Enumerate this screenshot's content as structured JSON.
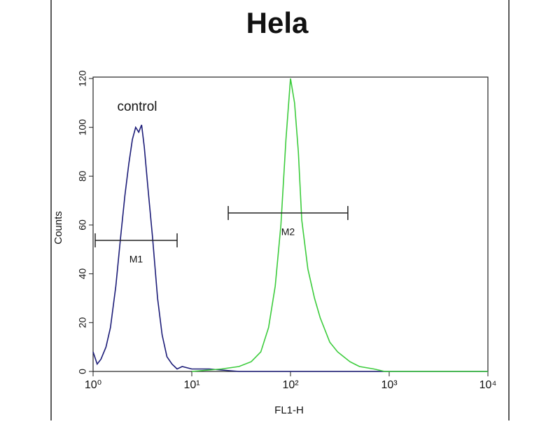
{
  "chart_data": {
    "type": "line",
    "title": "Hela",
    "x_label": "FL1-H",
    "y_label": "Counts",
    "xscale": "log",
    "xlim": [
      1,
      10000
    ],
    "ylim": [
      0,
      120
    ],
    "xticks": [
      {
        "value": 1,
        "label": "10⁰"
      },
      {
        "value": 10,
        "label": "10¹"
      },
      {
        "value": 100,
        "label": "10²"
      },
      {
        "value": 1000,
        "label": "10³"
      },
      {
        "value": 10000,
        "label": "10⁴"
      }
    ],
    "yticks": [
      0,
      20,
      40,
      60,
      80,
      100,
      120
    ],
    "series": [
      {
        "name": "control",
        "color": "#1c1c78",
        "x": [
          1.0,
          1.1,
          1.2,
          1.35,
          1.5,
          1.7,
          1.9,
          2.1,
          2.3,
          2.5,
          2.7,
          2.9,
          3.1,
          3.3,
          3.6,
          4.0,
          4.5,
          5.0,
          5.6,
          6.3,
          7.1,
          8,
          10,
          15,
          30,
          100,
          1000,
          10000
        ],
        "values": [
          8,
          3,
          5,
          10,
          18,
          35,
          55,
          72,
          85,
          95,
          100,
          98,
          101,
          92,
          75,
          55,
          30,
          15,
          6,
          3,
          1,
          2,
          1,
          1,
          0,
          0,
          0,
          0
        ]
      },
      {
        "color": "#3ccc3c",
        "x": [
          10,
          20,
          30,
          40,
          50,
          60,
          70,
          80,
          90,
          100,
          110,
          120,
          130,
          150,
          175,
          200,
          250,
          300,
          400,
          500,
          700,
          900,
          10000
        ],
        "values": [
          0,
          1,
          2,
          4,
          8,
          18,
          35,
          60,
          95,
          120,
          110,
          90,
          62,
          42,
          30,
          22,
          12,
          8,
          4,
          2,
          1,
          0,
          0
        ]
      }
    ],
    "markers": [
      {
        "label": "M1",
        "x": [
          1.05,
          7.1
        ],
        "y": 53.7
      },
      {
        "label": "M2",
        "x": [
          23.4,
          381
        ],
        "y": 64.9
      }
    ]
  }
}
